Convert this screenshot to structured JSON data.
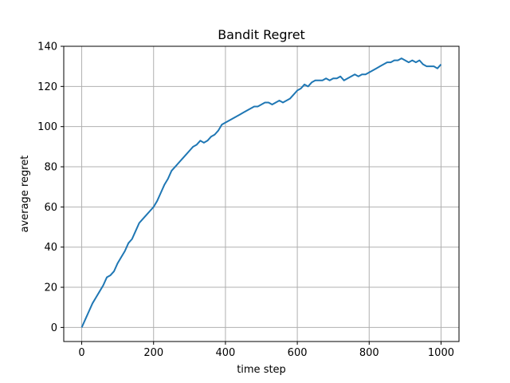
{
  "chart_data": {
    "type": "line",
    "title": "Bandit Regret",
    "xlabel": "time step",
    "ylabel": "average regret",
    "xlim": [
      -50,
      1050
    ],
    "ylim": [
      -7,
      140
    ],
    "xticks": [
      0,
      200,
      400,
      600,
      800,
      1000
    ],
    "yticks": [
      0,
      20,
      40,
      60,
      80,
      100,
      120,
      140
    ],
    "grid": true,
    "series": [
      {
        "color": "#1f77b4",
        "x": [
          0,
          10,
          20,
          30,
          40,
          50,
          60,
          70,
          80,
          90,
          100,
          110,
          120,
          130,
          140,
          150,
          160,
          170,
          180,
          190,
          200,
          210,
          220,
          230,
          240,
          250,
          260,
          270,
          280,
          290,
          300,
          310,
          320,
          330,
          340,
          350,
          360,
          370,
          380,
          390,
          400,
          410,
          420,
          430,
          440,
          450,
          460,
          470,
          480,
          490,
          500,
          510,
          520,
          530,
          540,
          550,
          560,
          570,
          580,
          590,
          600,
          610,
          620,
          630,
          640,
          650,
          660,
          670,
          680,
          690,
          700,
          710,
          720,
          730,
          740,
          750,
          760,
          770,
          780,
          790,
          800,
          810,
          820,
          830,
          840,
          850,
          860,
          870,
          880,
          890,
          900,
          910,
          920,
          930,
          940,
          950,
          960,
          970,
          980,
          990,
          1000
        ],
        "y": [
          0,
          4,
          8,
          12,
          15,
          18,
          21,
          25,
          26,
          28,
          32,
          35,
          38,
          42,
          44,
          48,
          52,
          54,
          56,
          58,
          60,
          63,
          67,
          71,
          74,
          78,
          80,
          82,
          84,
          86,
          88,
          90,
          91,
          93,
          92,
          93,
          95,
          96,
          98,
          101,
          102,
          103,
          104,
          105,
          106,
          107,
          108,
          109,
          110,
          110,
          111,
          112,
          112,
          111,
          112,
          113,
          112,
          113,
          114,
          116,
          118,
          119,
          121,
          120,
          122,
          123,
          123,
          123,
          124,
          123,
          124,
          124,
          125,
          123,
          124,
          125,
          126,
          125,
          126,
          126,
          127,
          128,
          129,
          130,
          131,
          132,
          132,
          133,
          133,
          134,
          133,
          132,
          133,
          132,
          133,
          131,
          130,
          130,
          130,
          129,
          131
        ]
      }
    ]
  }
}
